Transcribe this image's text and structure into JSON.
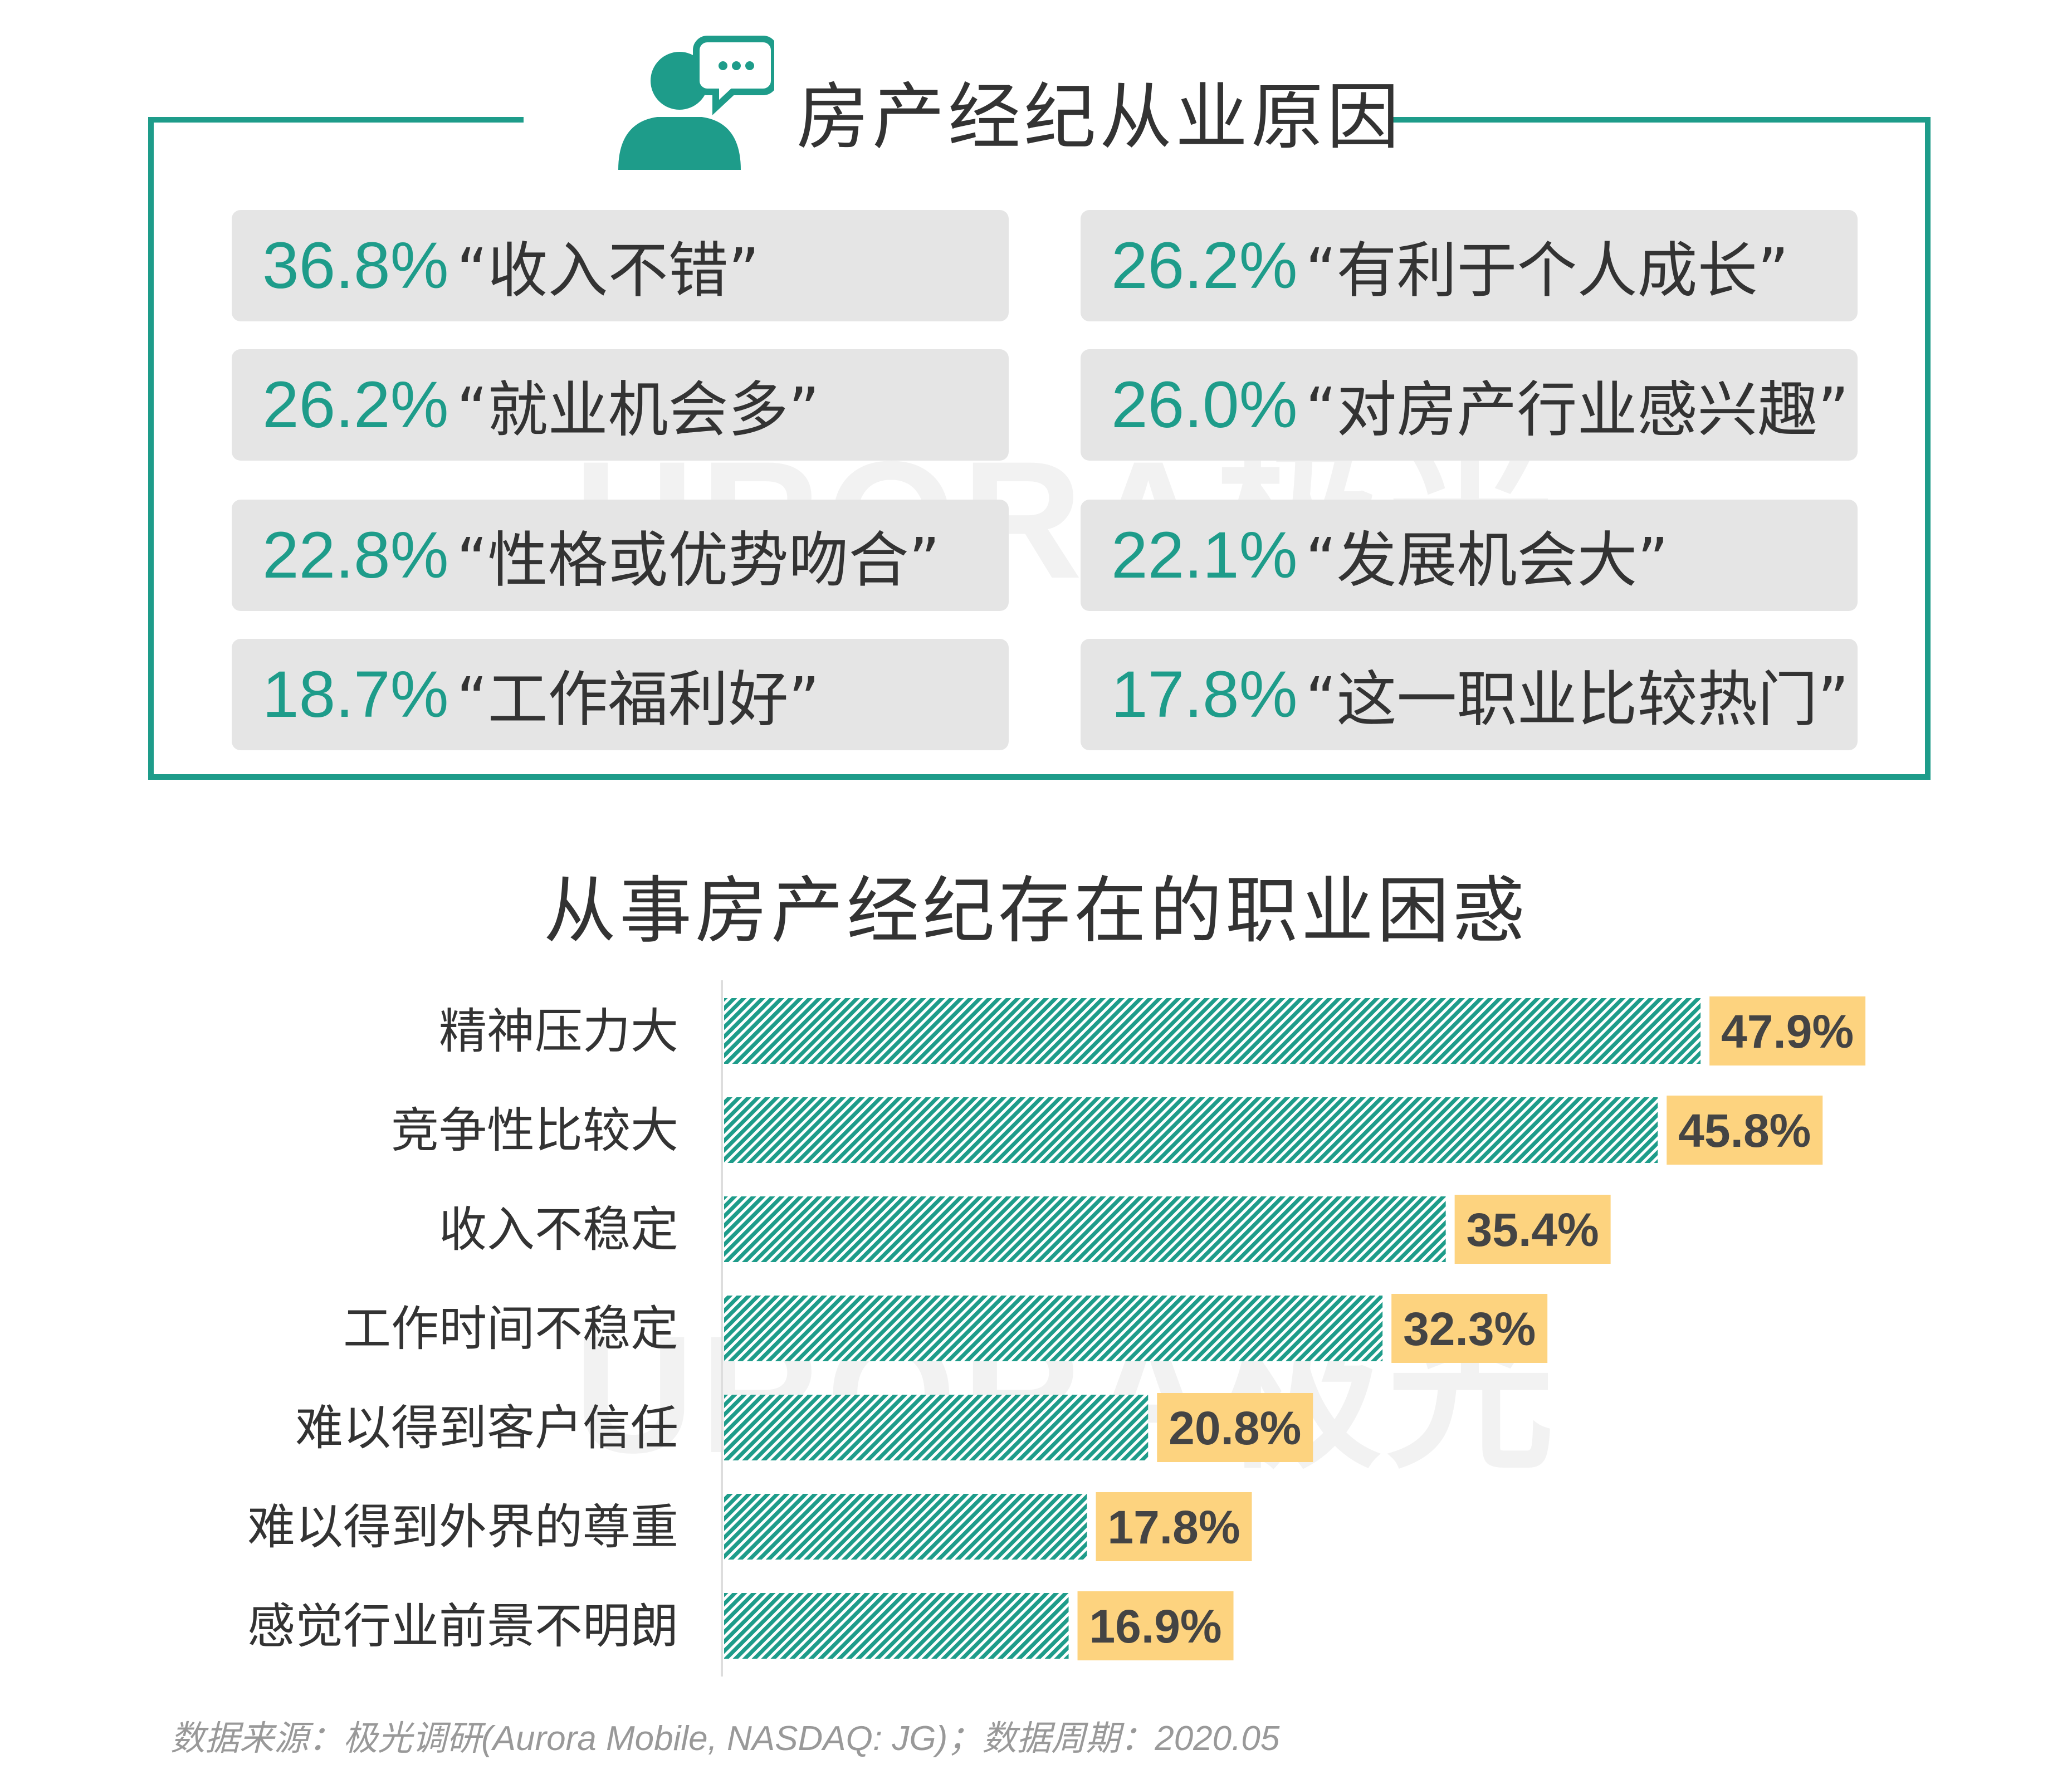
{
  "reasons": {
    "title": "房产经纪从业原因",
    "items": [
      {
        "pct": "36.8%",
        "label": "“收入不错”"
      },
      {
        "pct": "26.2%",
        "label": "“有利于个人成长”"
      },
      {
        "pct": "26.2%",
        "label": "“就业机会多”"
      },
      {
        "pct": "26.0%",
        "label": "“对房产行业感兴趣”"
      },
      {
        "pct": "22.8%",
        "label": "“性格或优势吻合”"
      },
      {
        "pct": "22.1%",
        "label": "“发展机会大”"
      },
      {
        "pct": "18.7%",
        "label": "“工作福利好”"
      },
      {
        "pct": "17.8%",
        "label": "“这一职业比较热门”"
      }
    ]
  },
  "watermark": "URORA极光",
  "chart_data": {
    "type": "bar",
    "orientation": "horizontal",
    "title": "从事房产经纪存在的职业困惑",
    "categories": [
      "精神压力大",
      "竞争性比较大",
      "收入不稳定",
      "工作时间不稳定",
      "难以得到客户信任",
      "难以得到外界的尊重",
      "感觉行业前景不明朗"
    ],
    "values": [
      47.9,
      45.8,
      35.4,
      32.3,
      20.8,
      17.8,
      16.9
    ],
    "value_labels": [
      "47.9%",
      "45.8%",
      "35.4%",
      "32.3%",
      "20.8%",
      "17.8%",
      "16.9%"
    ],
    "xlim": [
      0,
      50
    ],
    "bar_color": "#1e9c8a",
    "label_bg_color": "#fdd37f",
    "grid": false
  },
  "source": "数据来源：极光调研(Aurora Mobile, NASDAQ: JG)；数据周期：2020.05"
}
